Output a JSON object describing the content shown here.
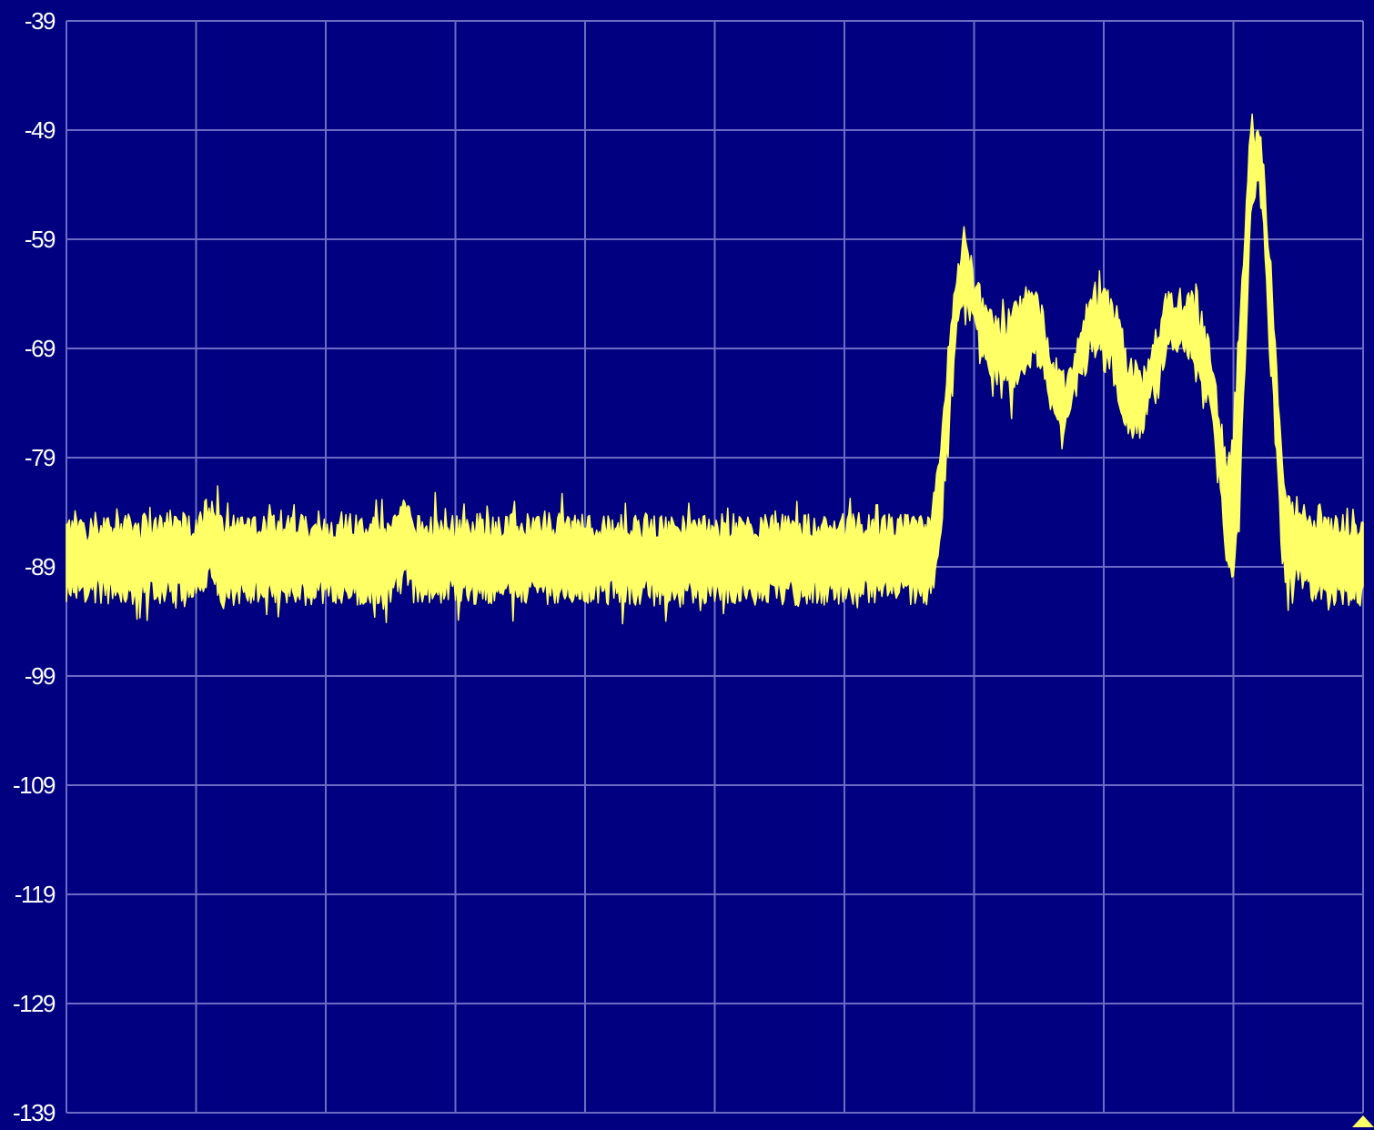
{
  "chart_data": {
    "type": "area",
    "title": "",
    "xlabel": "",
    "ylabel": "",
    "ylim": [
      -139,
      -39
    ],
    "xlim": [
      0,
      100
    ],
    "y_ticks": [
      "-39",
      "-49",
      "-59",
      "-69",
      "-79",
      "-89",
      "-99",
      "-109",
      "-119",
      "-129",
      "-139"
    ],
    "x_divisions": 10,
    "grid": true,
    "colors": {
      "background": "#000080",
      "grid": "#6c6cc4",
      "trace": "#ffff66",
      "labels": "#ffffff"
    },
    "series": [
      {
        "x": [
          0,
          5,
          10,
          11,
          12,
          15,
          20,
          25,
          26,
          27,
          30,
          35,
          40,
          45,
          50,
          55,
          60,
          65,
          66.5,
          67.3,
          68,
          68.7,
          69.3,
          70,
          71,
          72,
          73,
          74,
          74.8,
          76,
          77,
          78,
          79,
          80,
          81,
          81.8,
          83,
          84,
          84.8,
          86,
          86.8,
          87.5,
          88.3,
          89,
          89.5,
          90,
          90.4,
          91.3,
          91.8,
          92.2,
          93,
          93.7,
          94,
          96,
          98,
          100
        ],
        "upper": [
          -85.5,
          -85.3,
          -85.2,
          -83.5,
          -85.3,
          -85.4,
          -85.3,
          -85.3,
          -83.3,
          -85.3,
          -85.3,
          -85.2,
          -85.3,
          -85.4,
          -85.3,
          -85.4,
          -85.3,
          -85.4,
          -85.5,
          -80,
          -70,
          -62,
          -58.5,
          -63,
          -66,
          -67.5,
          -66,
          -65,
          -64,
          -70,
          -73,
          -68,
          -65,
          -64,
          -66,
          -70.5,
          -72,
          -68,
          -65,
          -64.5,
          -64.8,
          -66,
          -70,
          -76,
          -80,
          -78,
          -68,
          -50,
          -49.5,
          -51,
          -64,
          -79,
          -83,
          -85,
          -85.4,
          -85.5
        ],
        "lower": [
          -91,
          -91.3,
          -91.2,
          -89.5,
          -91.3,
          -91.4,
          -91.3,
          -91.3,
          -89.3,
          -91.3,
          -91.2,
          -91.3,
          -91.4,
          -91.3,
          -91.2,
          -91.3,
          -91.4,
          -91.3,
          -91.5,
          -88,
          -76,
          -67,
          -63.5,
          -67,
          -70,
          -71.5,
          -73,
          -71,
          -69,
          -74,
          -77,
          -72,
          -69,
          -68,
          -72,
          -76.5,
          -76,
          -72,
          -69,
          -69,
          -69.5,
          -72,
          -75,
          -81,
          -89,
          -90,
          -85,
          -58,
          -53,
          -56,
          -72,
          -87,
          -89.5,
          -91,
          -91.4,
          -91.5
        ]
      }
    ]
  }
}
